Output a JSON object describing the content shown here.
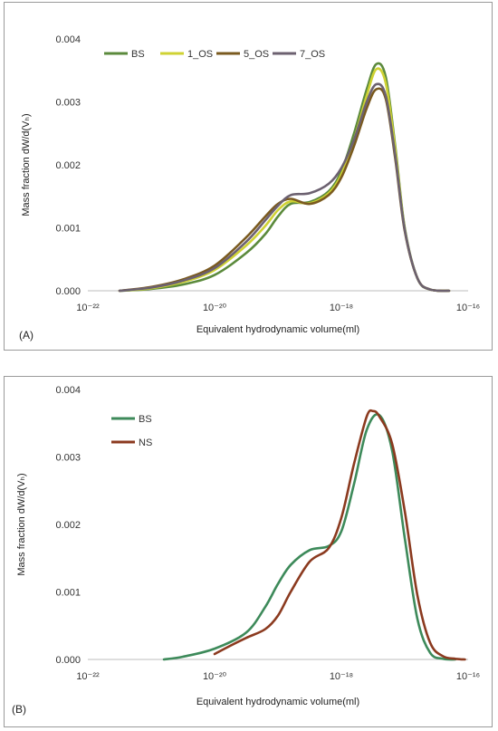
{
  "chart_data": [
    {
      "panel_label": "(A)",
      "type": "line",
      "xlabel": "Equivalent hydrodynamic volume(ml)",
      "ylabel": "Mass fraction dW/d(Vₕ)",
      "xscale": "log",
      "xlim": [
        -22,
        -16
      ],
      "ylim": [
        0,
        0.004
      ],
      "xticks": [
        -22,
        -20,
        -18,
        -16
      ],
      "xtick_labels": [
        "10⁻²²",
        "10⁻²⁰",
        "10⁻¹⁸",
        "10⁻¹⁶"
      ],
      "yticks": [
        0,
        0.001,
        0.002,
        0.003,
        0.004
      ],
      "ytick_labels": [
        "0.000",
        "0.001",
        "0.002",
        "0.003",
        "0.004"
      ],
      "legend_placement": "top",
      "grid": false,
      "series": [
        {
          "name": "BS",
          "color": "#5b8a3c",
          "x": [
            -21.5,
            -21,
            -20.5,
            -20,
            -19.5,
            -19.2,
            -19,
            -18.8,
            -18.5,
            -18.2,
            -18,
            -17.8,
            -17.6,
            -17.45,
            -17.3,
            -17.15,
            -17,
            -16.8,
            -16.6,
            -16.3
          ],
          "y": [
            0,
            3e-05,
            0.0001,
            0.00025,
            0.0006,
            0.0009,
            0.00118,
            0.00138,
            0.00141,
            0.00158,
            0.0019,
            0.0025,
            0.0032,
            0.0036,
            0.0034,
            0.0023,
            0.001,
            0.0002,
            2e-05,
            0
          ]
        },
        {
          "name": "1_OS",
          "color": "#cfd233",
          "x": [
            -21.5,
            -21,
            -20.5,
            -20,
            -19.5,
            -19.2,
            -19,
            -18.8,
            -18.5,
            -18.2,
            -18,
            -17.8,
            -17.6,
            -17.45,
            -17.3,
            -17.15,
            -17,
            -16.8,
            -16.6,
            -16.3
          ],
          "y": [
            0,
            4e-05,
            0.00014,
            0.00033,
            0.00072,
            0.00103,
            0.00128,
            0.00142,
            0.00139,
            0.00155,
            0.00185,
            0.0024,
            0.0031,
            0.00352,
            0.0033,
            0.00225,
            0.00098,
            0.0002,
            2e-05,
            0
          ]
        },
        {
          "name": "5_OS",
          "color": "#7a5a1f",
          "x": [
            -21.5,
            -21,
            -20.5,
            -20,
            -19.5,
            -19.2,
            -19,
            -18.8,
            -18.5,
            -18.2,
            -18,
            -17.8,
            -17.6,
            -17.45,
            -17.3,
            -17.15,
            -17,
            -16.8,
            -16.6,
            -16.3
          ],
          "y": [
            0,
            6e-05,
            0.00018,
            0.0004,
            0.00085,
            0.00118,
            0.00138,
            0.00146,
            0.00138,
            0.00152,
            0.0018,
            0.0023,
            0.0029,
            0.0032,
            0.00305,
            0.0021,
            0.00095,
            0.0002,
            2e-05,
            0
          ]
        },
        {
          "name": "7_OS",
          "color": "#6c6170",
          "x": [
            -21.5,
            -21,
            -20.5,
            -20,
            -19.5,
            -19.2,
            -19,
            -18.8,
            -18.5,
            -18.2,
            -18,
            -17.8,
            -17.6,
            -17.45,
            -17.3,
            -17.15,
            -17,
            -16.8,
            -16.6,
            -16.3
          ],
          "y": [
            0,
            5e-05,
            0.00016,
            0.00036,
            0.00078,
            0.00112,
            0.00135,
            0.00152,
            0.00155,
            0.0017,
            0.00195,
            0.0024,
            0.003,
            0.00328,
            0.0031,
            0.00215,
            0.00097,
            0.0002,
            2e-05,
            0
          ]
        }
      ]
    },
    {
      "panel_label": "(B)",
      "type": "line",
      "xlabel": "Equivalent hydrodynamic volume(ml)",
      "ylabel": "Mass fraction dW/d(Vₕ)",
      "xscale": "log",
      "xlim": [
        -22,
        -16
      ],
      "ylim": [
        0,
        0.004
      ],
      "xticks": [
        -22,
        -20,
        -18,
        -16
      ],
      "xtick_labels": [
        "10⁻²²",
        "10⁻²⁰",
        "10⁻¹⁸",
        "10⁻¹⁶"
      ],
      "yticks": [
        0,
        0.001,
        0.002,
        0.003,
        0.004
      ],
      "ytick_labels": [
        "0.000",
        "0.001",
        "0.002",
        "0.003",
        "0.004"
      ],
      "legend_placement": "top-left",
      "grid": false,
      "series": [
        {
          "name": "BS",
          "color": "#3d8a5a",
          "x": [
            -20.8,
            -20.5,
            -20,
            -19.5,
            -19.2,
            -19,
            -18.8,
            -18.5,
            -18.2,
            -18,
            -17.8,
            -17.6,
            -17.4,
            -17.2,
            -17,
            -16.8,
            -16.6,
            -16.4,
            -16.2
          ],
          "y": [
            0,
            4e-05,
            0.00016,
            0.0004,
            0.00078,
            0.00112,
            0.0014,
            0.00162,
            0.00168,
            0.0019,
            0.0026,
            0.0034,
            0.00362,
            0.0031,
            0.0018,
            0.0006,
            0.0001,
            1e-05,
            0
          ]
        },
        {
          "name": "NS",
          "color": "#8b3a1f",
          "x": [
            -20,
            -19.8,
            -19.5,
            -19.2,
            -19,
            -18.8,
            -18.5,
            -18.2,
            -18,
            -17.8,
            -17.6,
            -17.5,
            -17.4,
            -17.2,
            -17,
            -16.8,
            -16.6,
            -16.4,
            -16.2,
            -16.05
          ],
          "y": [
            8e-05,
            0.00018,
            0.00032,
            0.00045,
            0.00065,
            0.001,
            0.00145,
            0.00165,
            0.0021,
            0.0029,
            0.0036,
            0.00368,
            0.0036,
            0.0032,
            0.0022,
            0.00095,
            0.00025,
            5e-05,
            1e-05,
            0
          ]
        }
      ]
    }
  ]
}
